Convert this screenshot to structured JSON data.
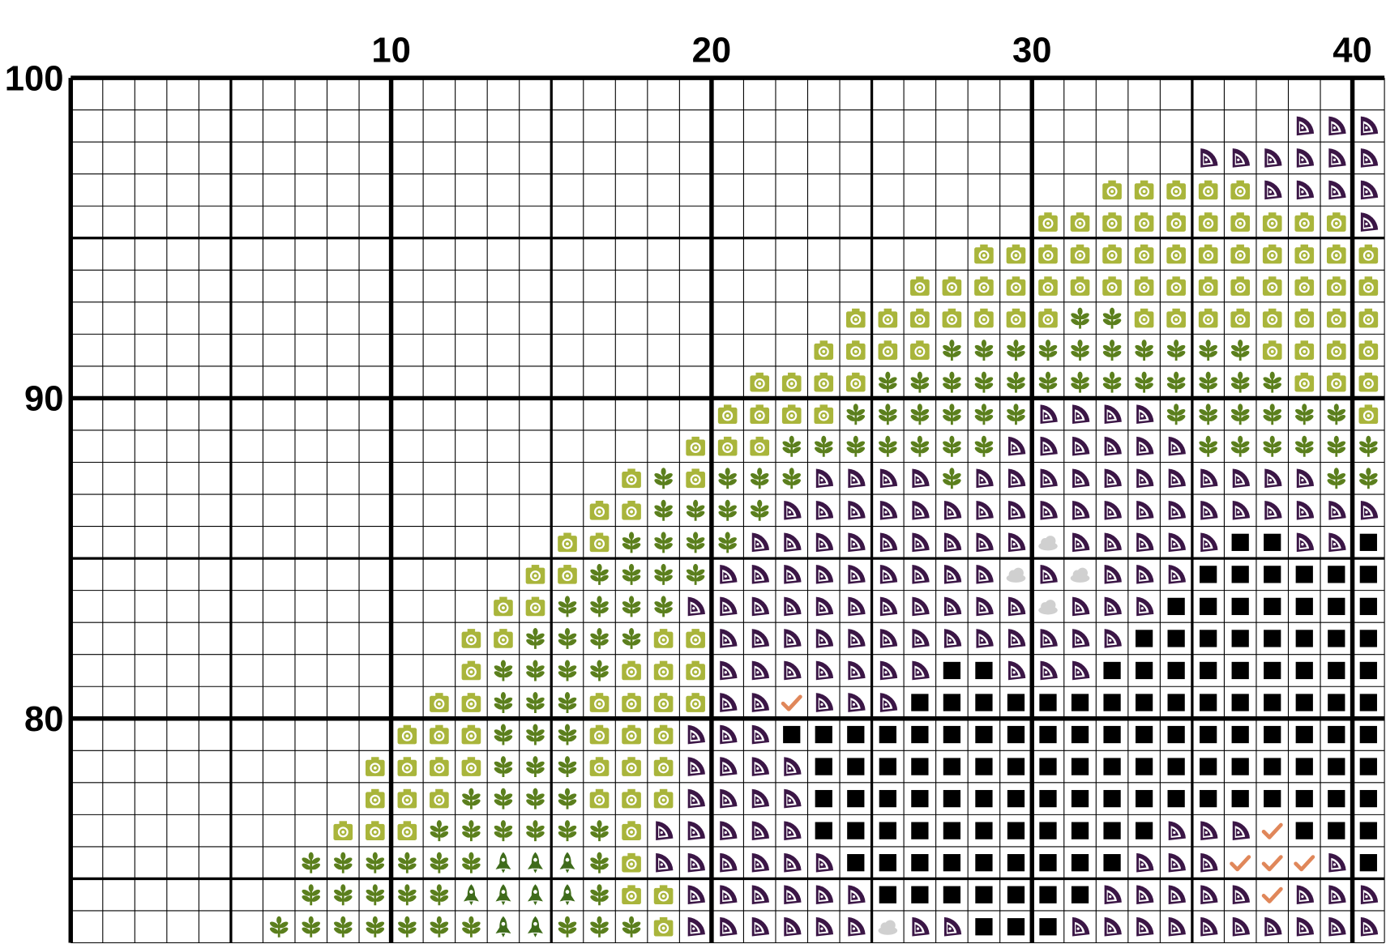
{
  "column_labels": [
    10,
    20,
    30,
    40
  ],
  "row_labels": [
    100,
    90,
    80
  ]
}
